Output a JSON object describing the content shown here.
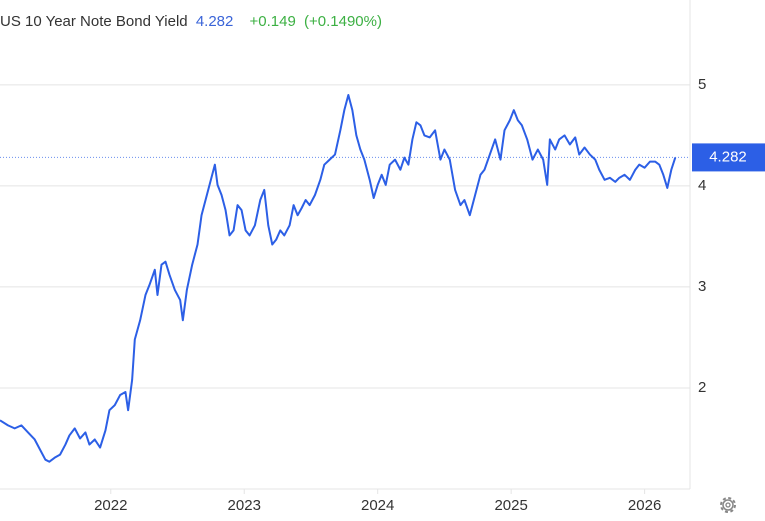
{
  "chart_data": {
    "type": "line",
    "title": "US 10 Year Note Bond Yield",
    "price": "4.282",
    "change": "+0.149",
    "change_percent": "(+0.1490%)",
    "color": "#2c5fe6",
    "price_color": "#3a64d8",
    "change_color": "#3cb043",
    "xlim": [
      2021.17,
      2026.34
    ],
    "xticks": [
      2022,
      2023,
      2024,
      2025,
      2026
    ],
    "ylim": [
      1,
      5.84
    ],
    "yticks": [
      2,
      3,
      4,
      5
    ],
    "grid": true,
    "last_value": 4.282,
    "x": [
      2021.17,
      2021.23,
      2021.28,
      2021.33,
      2021.38,
      2021.43,
      2021.47,
      2021.51,
      2021.54,
      2021.58,
      2021.62,
      2021.66,
      2021.69,
      2021.73,
      2021.77,
      2021.81,
      2021.84,
      2021.88,
      2021.92,
      2021.96,
      2021.99,
      2022.03,
      2022.07,
      2022.11,
      2022.13,
      2022.16,
      2022.18,
      2022.22,
      2022.26,
      2022.29,
      2022.33,
      2022.35,
      2022.38,
      2022.41,
      2022.44,
      2022.48,
      2022.52,
      2022.54,
      2022.57,
      2022.61,
      2022.65,
      2022.68,
      2022.72,
      2022.76,
      2022.78,
      2022.8,
      2022.83,
      2022.86,
      2022.89,
      2022.92,
      2022.95,
      2022.98,
      2023.01,
      2023.04,
      2023.08,
      2023.12,
      2023.15,
      2023.18,
      2023.21,
      2023.24,
      2023.27,
      2023.3,
      2023.34,
      2023.37,
      2023.4,
      2023.43,
      2023.46,
      2023.49,
      2023.53,
      2023.57,
      2023.6,
      2023.64,
      2023.68,
      2023.72,
      2023.75,
      2023.78,
      2023.81,
      2023.84,
      2023.87,
      2023.9,
      2023.94,
      2023.97,
      2024.0,
      2024.03,
      2024.06,
      2024.09,
      2024.13,
      2024.17,
      2024.2,
      2024.23,
      2024.26,
      2024.29,
      2024.32,
      2024.35,
      2024.39,
      2024.43,
      2024.47,
      2024.5,
      2024.54,
      2024.58,
      2024.62,
      2024.65,
      2024.69,
      2024.73,
      2024.77,
      2024.8,
      2024.84,
      2024.88,
      2024.92,
      2024.95,
      2024.99,
      2025.02,
      2025.05,
      2025.08,
      2025.12,
      2025.16,
      2025.2,
      2025.24,
      2025.27,
      2025.29,
      2025.33,
      2025.36,
      2025.4,
      2025.44,
      2025.48,
      2025.51,
      2025.55,
      2025.59,
      2025.63,
      2025.66,
      2025.7,
      2025.74,
      2025.78,
      2025.81,
      2025.85,
      2025.89,
      2025.93,
      2025.96,
      2026.0,
      2026.04,
      2026.08,
      2026.11,
      2026.14,
      2026.17,
      2026.2,
      2026.23
    ],
    "values": [
      1.68,
      1.63,
      1.6,
      1.63,
      1.56,
      1.49,
      1.39,
      1.29,
      1.27,
      1.31,
      1.34,
      1.44,
      1.53,
      1.6,
      1.5,
      1.56,
      1.44,
      1.49,
      1.41,
      1.58,
      1.78,
      1.83,
      1.93,
      1.96,
      1.78,
      2.08,
      2.48,
      2.67,
      2.92,
      3.02,
      3.17,
      2.92,
      3.22,
      3.25,
      3.12,
      2.97,
      2.87,
      2.67,
      2.97,
      3.22,
      3.42,
      3.71,
      3.91,
      4.11,
      4.21,
      4.01,
      3.91,
      3.76,
      3.51,
      3.56,
      3.81,
      3.76,
      3.56,
      3.51,
      3.61,
      3.86,
      3.96,
      3.61,
      3.42,
      3.47,
      3.56,
      3.51,
      3.61,
      3.81,
      3.71,
      3.78,
      3.86,
      3.81,
      3.91,
      4.06,
      4.21,
      4.26,
      4.31,
      4.55,
      4.75,
      4.9,
      4.75,
      4.5,
      4.36,
      4.26,
      4.06,
      3.88,
      4.01,
      4.11,
      4.01,
      4.21,
      4.26,
      4.16,
      4.28,
      4.21,
      4.46,
      4.63,
      4.6,
      4.5,
      4.48,
      4.55,
      4.26,
      4.36,
      4.26,
      3.96,
      3.81,
      3.86,
      3.71,
      3.91,
      4.11,
      4.16,
      4.31,
      4.46,
      4.26,
      4.55,
      4.65,
      4.75,
      4.65,
      4.6,
      4.46,
      4.26,
      4.36,
      4.26,
      4.01,
      4.46,
      4.36,
      4.46,
      4.5,
      4.41,
      4.48,
      4.31,
      4.38,
      4.31,
      4.26,
      4.16,
      4.06,
      4.08,
      4.04,
      4.08,
      4.11,
      4.06,
      4.16,
      4.21,
      4.18,
      4.24,
      4.24,
      4.21,
      4.11,
      3.98,
      4.16,
      4.282
    ]
  }
}
